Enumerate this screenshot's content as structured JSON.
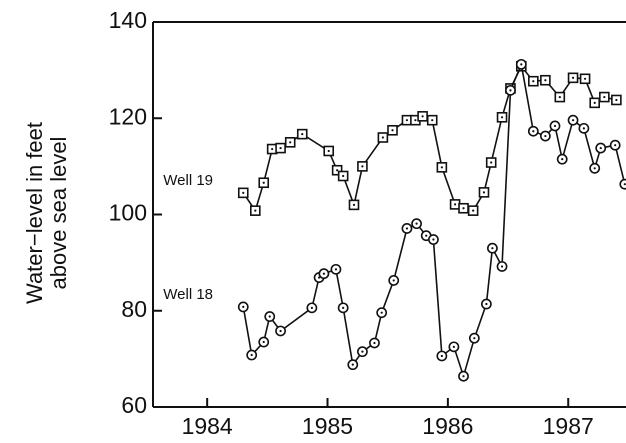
{
  "chart_data": {
    "type": "line",
    "ylabel_lines": [
      "Water−level in feet",
      "above sea level"
    ],
    "xlim": [
      1983.55,
      1987.48
    ],
    "ylim": [
      60,
      140
    ],
    "xticks": [
      1984,
      1985,
      1986,
      1987
    ],
    "yticks": [
      60,
      80,
      100,
      120,
      140
    ],
    "color": "#111111",
    "series": [
      {
        "name": "Well 19",
        "marker": "square",
        "x": [
          1984.3,
          1984.4,
          1984.47,
          1984.54,
          1984.61,
          1984.69,
          1984.79,
          1985.01,
          1985.08,
          1985.13,
          1985.22,
          1985.29,
          1985.46,
          1985.54,
          1985.66,
          1985.73,
          1985.79,
          1985.87,
          1985.95,
          1986.06,
          1986.13,
          1986.21,
          1986.3,
          1986.36,
          1986.45,
          1986.52,
          1986.61,
          1986.71,
          1986.81,
          1986.93,
          1987.04,
          1987.14,
          1987.22,
          1987.3,
          1987.4
        ],
        "values": [
          104.5,
          100.8,
          106.6,
          113.6,
          113.8,
          115,
          116.7,
          113.2,
          109.2,
          108,
          102,
          110,
          116,
          117.5,
          119.6,
          119.6,
          120.4,
          119.6,
          109.8,
          102.1,
          101.3,
          100.8,
          104.6,
          110.8,
          120.2,
          126.2,
          130.8,
          127.7,
          127.9,
          124.4,
          128.4,
          128.2,
          123.2,
          124.4,
          123.8
        ]
      },
      {
        "name": "Well 18",
        "marker": "circle",
        "x": [
          1984.3,
          1984.37,
          1984.47,
          1984.52,
          1984.61,
          1984.87,
          1984.93,
          1984.97,
          1985.07,
          1985.13,
          1985.21,
          1985.29,
          1985.39,
          1985.45,
          1985.55,
          1985.66,
          1985.74,
          1985.82,
          1985.88,
          1985.95,
          1986.05,
          1986.13,
          1986.22,
          1986.32,
          1986.37,
          1986.45,
          1986.52,
          1986.61,
          1986.71,
          1986.81,
          1986.89,
          1986.95,
          1987.04,
          1987.13,
          1987.22,
          1987.27,
          1987.39,
          1987.47
        ],
        "values": [
          80.8,
          70.8,
          73.5,
          78.8,
          75.8,
          80.6,
          86.9,
          87.7,
          88.6,
          80.6,
          68.8,
          71.5,
          73.3,
          79.6,
          86.3,
          97.1,
          98.1,
          95.6,
          94.8,
          70.6,
          72.5,
          66.4,
          74.3,
          81.4,
          93,
          89.2,
          125.8,
          131.2,
          117.3,
          116.3,
          118.4,
          111.5,
          119.6,
          117.9,
          109.6,
          113.8,
          114.4,
          106.3
        ]
      }
    ]
  }
}
